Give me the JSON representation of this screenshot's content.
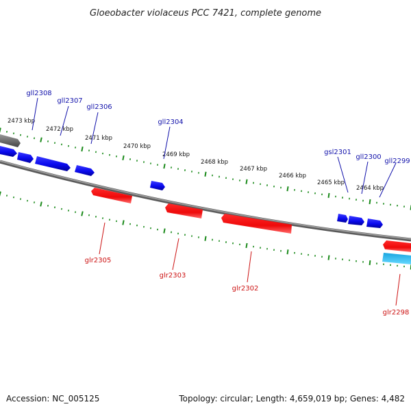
{
  "title": "Gloeobacter violaceus PCC 7421, complete genome",
  "footer": {
    "accession": "Accession: NC_005125",
    "summary": "Topology: circular; Length: 4,659,019 bp; Genes: 4,482"
  },
  "colors": {
    "forward_gene": "#0a0aee",
    "reverse_gene": "#ee0a0a",
    "rna_gene": "#22bbee",
    "other_gene": "#777777",
    "backbone": "#808080",
    "ticks": "#1a8a1a",
    "forward_label": "#1010aa",
    "reverse_label": "#cc1010"
  },
  "scale_labels": [
    "2473 kbp",
    "2472 kbp",
    "2471 kbp",
    "2470 kbp",
    "2469 kbp",
    "2468 kbp",
    "2467 kbp",
    "2466 kbp",
    "2465 kbp",
    "2464 kbp"
  ],
  "forward_genes": [
    "gll2308",
    "gll2307",
    "gll2306",
    "gll2304",
    "gsl2301",
    "gll2300",
    "gll2299"
  ],
  "reverse_genes": [
    "glr2305",
    "glr2303",
    "glr2302",
    "glr2298"
  ]
}
